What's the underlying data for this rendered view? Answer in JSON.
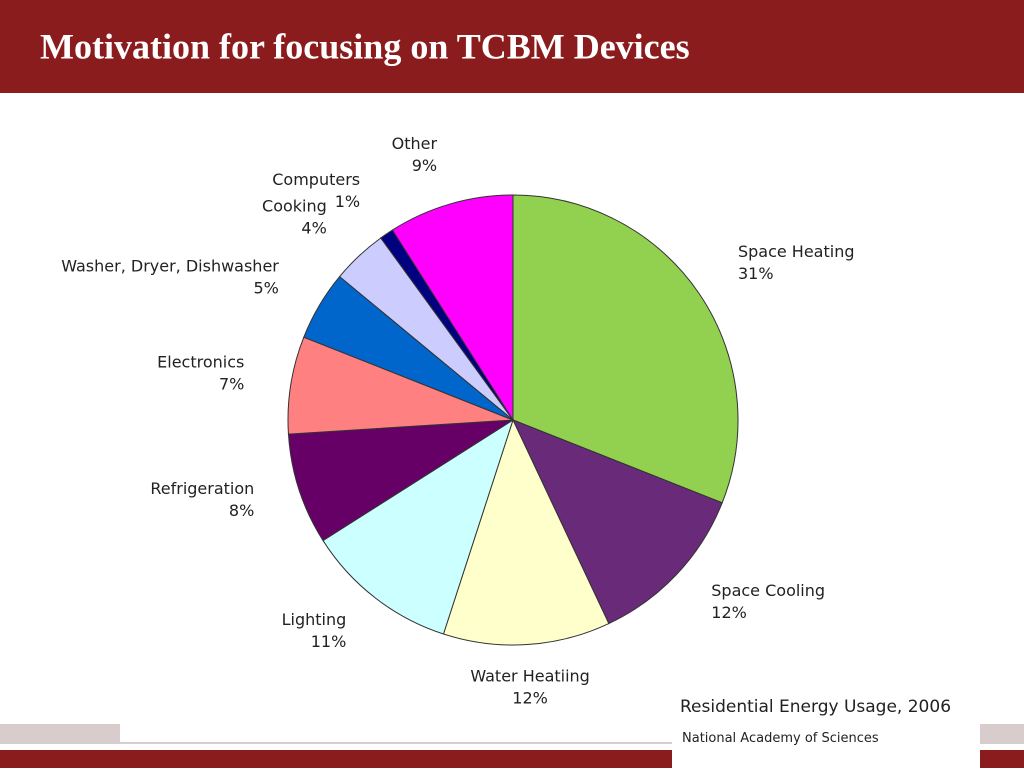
{
  "slide_title": "Motivation for focusing on TCBM Devices",
  "chart_data": {
    "type": "pie",
    "title": "Residential Energy Usage, 2006",
    "source": "National Academy of Sciences",
    "categories": [
      "Space Heating",
      "Space Cooling",
      "Water Heatiing",
      "Lighting",
      "Refrigeration",
      "Electronics",
      "Washer, Dryer, Dishwasher",
      "Cooking",
      "Computers",
      "Other"
    ],
    "values": [
      31,
      12,
      12,
      11,
      8,
      7,
      5,
      4,
      1,
      9
    ],
    "value_labels": [
      "31%",
      "12%",
      "12%",
      "11%",
      "8%",
      "7%",
      "5%",
      "4%",
      "1%",
      "9%"
    ],
    "colors": [
      "#92d050",
      "#6a2a7a",
      "#ffffcc",
      "#ccffff",
      "#660066",
      "#ff8080",
      "#0066cc",
      "#ccccff",
      "#000080",
      "#ff00ff"
    ]
  }
}
